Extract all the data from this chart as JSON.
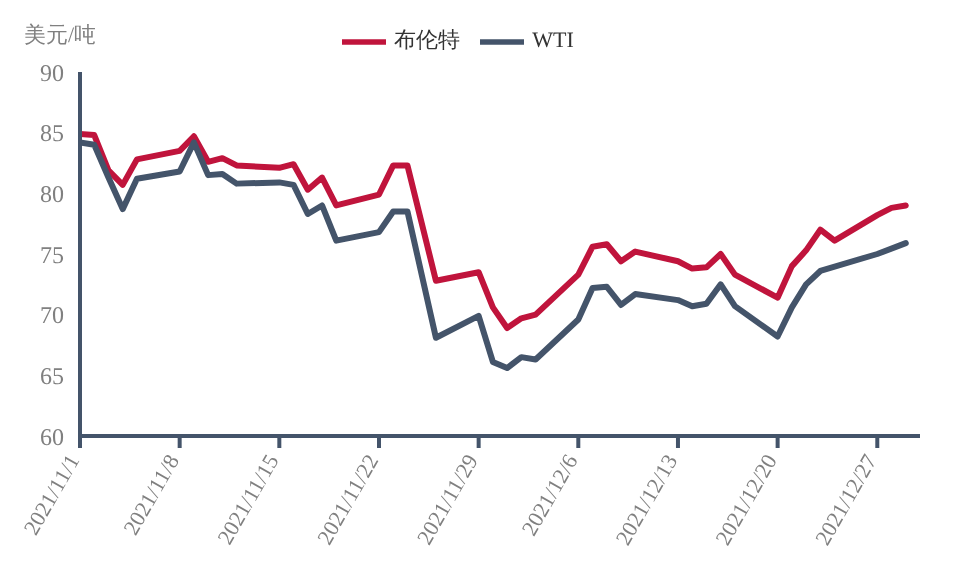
{
  "chart_data": {
    "type": "line",
    "ylabel": "美元/吨",
    "legend": "top",
    "marker": "none",
    "line_style": "solid",
    "xlim": [
      "2021-11-01",
      "2021-12-30"
    ],
    "xticks": [
      {
        "value": "2021-11-01",
        "label": "2021/11/1"
      },
      {
        "value": "2021-11-08",
        "label": "2021/11/8"
      },
      {
        "value": "2021-11-15",
        "label": "2021/11/15"
      },
      {
        "value": "2021-11-22",
        "label": "2021/11/22"
      },
      {
        "value": "2021-11-29",
        "label": "2021/11/29"
      },
      {
        "value": "2021-12-06",
        "label": "2021/12/6"
      },
      {
        "value": "2021-12-13",
        "label": "2021/12/13"
      },
      {
        "value": "2021-12-20",
        "label": "2021/12/20"
      },
      {
        "value": "2021-12-27",
        "label": "2021/12/27"
      }
    ],
    "ylim": [
      60,
      90
    ],
    "yticks": [
      60,
      65,
      70,
      75,
      80,
      85,
      90
    ],
    "series": [
      {
        "name": "布伦特",
        "color": "#c0143c",
        "x": [
          "2021-11-01",
          "2021-11-02",
          "2021-11-03",
          "2021-11-04",
          "2021-11-05",
          "2021-11-08",
          "2021-11-09",
          "2021-11-10",
          "2021-11-11",
          "2021-11-12",
          "2021-11-15",
          "2021-11-16",
          "2021-11-17",
          "2021-11-18",
          "2021-11-19",
          "2021-11-22",
          "2021-11-23",
          "2021-11-24",
          "2021-11-26",
          "2021-11-29",
          "2021-11-30",
          "2021-12-01",
          "2021-12-02",
          "2021-12-03",
          "2021-12-06",
          "2021-12-07",
          "2021-12-08",
          "2021-12-09",
          "2021-12-10",
          "2021-12-13",
          "2021-12-14",
          "2021-12-15",
          "2021-12-16",
          "2021-12-17",
          "2021-12-20",
          "2021-12-21",
          "2021-12-22",
          "2021-12-23",
          "2021-12-24",
          "2021-12-27",
          "2021-12-28",
          "2021-12-29"
        ],
        "values": [
          84.9,
          84.8,
          81.9,
          80.7,
          82.8,
          83.5,
          84.7,
          82.6,
          82.9,
          82.3,
          82.1,
          82.4,
          80.3,
          81.3,
          79.0,
          79.9,
          82.3,
          82.3,
          72.8,
          73.5,
          70.6,
          68.9,
          69.7,
          70.0,
          73.3,
          75.6,
          75.8,
          74.4,
          75.2,
          74.4,
          73.8,
          73.9,
          75.0,
          73.3,
          71.4,
          74.0,
          75.3,
          77.0,
          76.1,
          78.2,
          78.8,
          79.0
        ]
      },
      {
        "name": "WTI",
        "color": "#44546a",
        "x": [
          "2021-11-01",
          "2021-11-02",
          "2021-11-03",
          "2021-11-04",
          "2021-11-05",
          "2021-11-08",
          "2021-11-09",
          "2021-11-10",
          "2021-11-11",
          "2021-11-12",
          "2021-11-15",
          "2021-11-16",
          "2021-11-17",
          "2021-11-18",
          "2021-11-19",
          "2021-11-22",
          "2021-11-23",
          "2021-11-24",
          "2021-11-26",
          "2021-11-29",
          "2021-11-30",
          "2021-12-01",
          "2021-12-02",
          "2021-12-03",
          "2021-12-06",
          "2021-12-07",
          "2021-12-08",
          "2021-12-09",
          "2021-12-10",
          "2021-12-13",
          "2021-12-14",
          "2021-12-15",
          "2021-12-16",
          "2021-12-17",
          "2021-12-20",
          "2021-12-21",
          "2021-12-22",
          "2021-12-23",
          "2021-12-27",
          "2021-12-29"
        ],
        "values": [
          84.2,
          84.0,
          81.3,
          78.7,
          81.2,
          81.8,
          84.2,
          81.5,
          81.6,
          80.8,
          80.9,
          80.7,
          78.3,
          79.0,
          76.1,
          76.8,
          78.5,
          78.5,
          68.1,
          69.9,
          66.1,
          65.6,
          66.5,
          66.3,
          69.6,
          72.2,
          72.3,
          70.8,
          71.7,
          71.2,
          70.7,
          70.9,
          72.5,
          70.7,
          68.2,
          70.6,
          72.5,
          73.6,
          75.0,
          75.9
        ]
      }
    ]
  }
}
